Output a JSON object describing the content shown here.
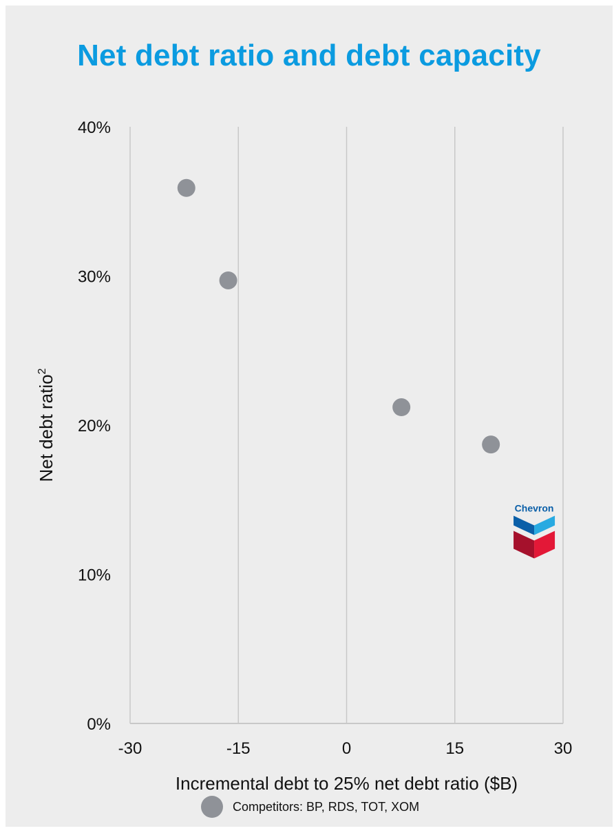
{
  "chart_data": {
    "type": "scatter",
    "title": "Net debt ratio and debt capacity",
    "xlabel": "Incremental debt to 25% net debt ratio ($B)",
    "ylabel": "Net debt ratio",
    "ylabel_superscript": "2",
    "xlim": [
      -30,
      30
    ],
    "ylim": [
      0,
      40
    ],
    "x_ticks": [
      "-30",
      "-15",
      "0",
      "15",
      "30"
    ],
    "y_ticks": [
      "0%",
      "10%",
      "20%",
      "30%",
      "40%"
    ],
    "grid": "vertical",
    "series": [
      {
        "name": "Competitors: BP, RDS, TOT, XOM",
        "points": [
          {
            "x": -22.2,
            "y": 35.9
          },
          {
            "x": -16.4,
            "y": 29.7
          },
          {
            "x": 7.6,
            "y": 21.2
          },
          {
            "x": 20.0,
            "y": 18.7
          }
        ]
      },
      {
        "marker": "chevron-logo",
        "points": [
          {
            "x": 26.0,
            "y": 13.0
          }
        ]
      }
    ],
    "legend": {
      "position": "bottom-center",
      "label": "Competitors: BP, RDS, TOT, XOM"
    }
  },
  "logo": {
    "text": "Chevron"
  },
  "colors": {
    "title": "#0b9be0",
    "marker": "#8f9298",
    "grid": "#c8c8c8",
    "logo_blue_dark": "#0a5fa8",
    "logo_blue_light": "#28aae1",
    "logo_red": "#e31837",
    "logo_red_dark": "#a5112c"
  }
}
